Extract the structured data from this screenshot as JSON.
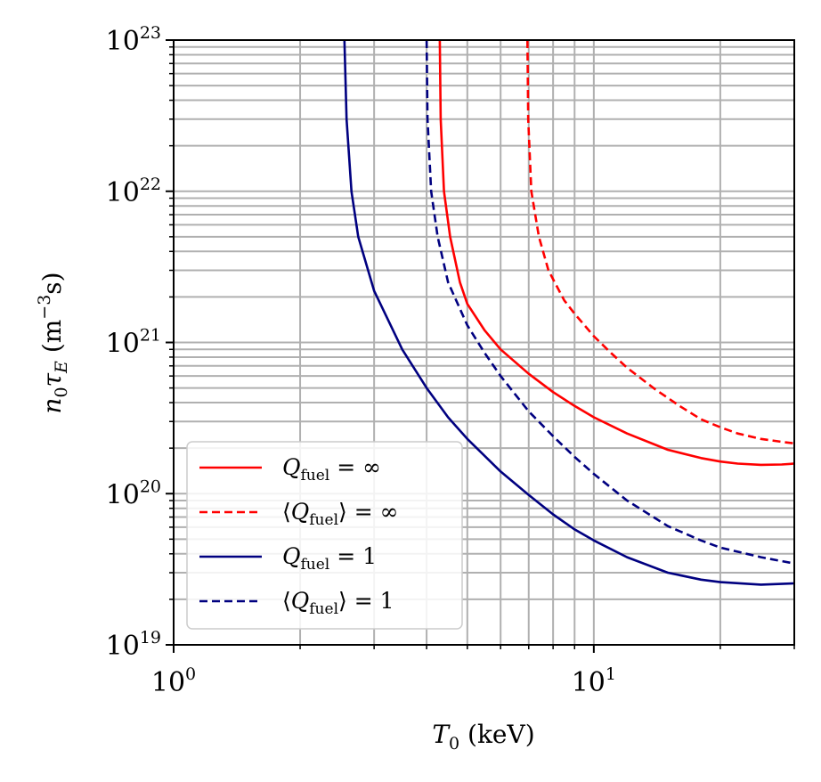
{
  "chart_data": {
    "type": "line",
    "title": "",
    "xlabel": "T_0 (keV)",
    "ylabel": "n_0 τ_E (m^-3 s)",
    "xscale": "log",
    "yscale": "log",
    "xlim": [
      1,
      30
    ],
    "ylim": [
      1e+19,
      1e+23
    ],
    "grid": true,
    "x_ticks": [
      {
        "value": 1,
        "base": "10",
        "exp": "0"
      },
      {
        "value": 10,
        "base": "10",
        "exp": "1"
      }
    ],
    "y_ticks": [
      {
        "value": 1e+19,
        "base": "10",
        "exp": "19"
      },
      {
        "value": 1e+20,
        "base": "10",
        "exp": "20"
      },
      {
        "value": 1e+21,
        "base": "10",
        "exp": "21"
      },
      {
        "value": 1e+22,
        "base": "10",
        "exp": "22"
      },
      {
        "value": 1e+23,
        "base": "10",
        "exp": "23"
      }
    ],
    "legend_position": "lower-left",
    "series": [
      {
        "name": "Q_fuel = ∞",
        "label_parts": {
          "prefix": "",
          "var": "Q",
          "sub": "fuel",
          "suffix": "",
          "rhs": " = ∞"
        },
        "color": "#ff0000",
        "dash": "solid",
        "points": [
          [
            4.3,
            1e+23
          ],
          [
            4.32,
            3e+22
          ],
          [
            4.4,
            1e+22
          ],
          [
            4.55,
            5e+21
          ],
          [
            4.8,
            2.5e+21
          ],
          [
            5,
            1.8e+21
          ],
          [
            5.5,
            1.2e+21
          ],
          [
            6,
            9e+20
          ],
          [
            7,
            6.2e+20
          ],
          [
            8,
            4.7e+20
          ],
          [
            9,
            3.8e+20
          ],
          [
            10,
            3.2e+20
          ],
          [
            12,
            2.5e+20
          ],
          [
            15,
            1.95e+20
          ],
          [
            18,
            1.72e+20
          ],
          [
            20,
            1.63e+20
          ],
          [
            22,
            1.58e+20
          ],
          [
            25,
            1.55e+20
          ],
          [
            28,
            1.56e+20
          ],
          [
            30,
            1.58e+20
          ]
        ]
      },
      {
        "name": "⟨Q_fuel⟩ = ∞",
        "label_parts": {
          "prefix": "⟨",
          "var": "Q",
          "sub": "fuel",
          "suffix": "⟩",
          "rhs": " = ∞"
        },
        "color": "#ff0000",
        "dash": "dashed",
        "points": [
          [
            6.95,
            1e+23
          ],
          [
            6.98,
            3e+22
          ],
          [
            7.1,
            1e+22
          ],
          [
            7.4,
            5e+21
          ],
          [
            7.8,
            3e+21
          ],
          [
            8.5,
            1.9e+21
          ],
          [
            9,
            1.55e+21
          ],
          [
            10,
            1.1e+21
          ],
          [
            11,
            8.5e+20
          ],
          [
            12,
            6.8e+20
          ],
          [
            14,
            4.9e+20
          ],
          [
            16,
            3.8e+20
          ],
          [
            18,
            3.1e+20
          ],
          [
            20,
            2.75e+20
          ],
          [
            22,
            2.5e+20
          ],
          [
            25,
            2.3e+20
          ],
          [
            28,
            2.2e+20
          ],
          [
            30,
            2.15e+20
          ]
        ]
      },
      {
        "name": "Q_fuel = 1",
        "label_parts": {
          "prefix": "",
          "var": "Q",
          "sub": "fuel",
          "suffix": "",
          "rhs": " = 1"
        },
        "color": "#000080",
        "dash": "solid",
        "points": [
          [
            2.55,
            1e+23
          ],
          [
            2.58,
            3e+22
          ],
          [
            2.65,
            1e+22
          ],
          [
            2.75,
            5e+21
          ],
          [
            3,
            2.2e+21
          ],
          [
            3.5,
            9e+20
          ],
          [
            4,
            5e+20
          ],
          [
            4.5,
            3.2e+20
          ],
          [
            5,
            2.3e+20
          ],
          [
            6,
            1.4e+20
          ],
          [
            7,
            9.8e+19
          ],
          [
            8,
            7.3e+19
          ],
          [
            9,
            5.8e+19
          ],
          [
            10,
            4.9e+19
          ],
          [
            12,
            3.8e+19
          ],
          [
            15,
            3e+19
          ],
          [
            18,
            2.7e+19
          ],
          [
            20,
            2.6e+19
          ],
          [
            25,
            2.5e+19
          ],
          [
            30,
            2.55e+19
          ]
        ]
      },
      {
        "name": "⟨Q_fuel⟩ = 1",
        "label_parts": {
          "prefix": "⟨",
          "var": "Q",
          "sub": "fuel",
          "suffix": "⟩",
          "rhs": " = 1"
        },
        "color": "#000080",
        "dash": "dashed",
        "points": [
          [
            4,
            1e+23
          ],
          [
            4.02,
            3e+22
          ],
          [
            4.1,
            1e+22
          ],
          [
            4.25,
            5e+21
          ],
          [
            4.5,
            2.5e+21
          ],
          [
            5,
            1.3e+21
          ],
          [
            5.5,
            8.5e+20
          ],
          [
            6,
            6e+20
          ],
          [
            7,
            3.5e+20
          ],
          [
            8,
            2.4e+20
          ],
          [
            9,
            1.75e+20
          ],
          [
            10,
            1.35e+20
          ],
          [
            12,
            9e+19
          ],
          [
            15,
            6.1e+19
          ],
          [
            18,
            4.9e+19
          ],
          [
            20,
            4.4e+19
          ],
          [
            25,
            3.8e+19
          ],
          [
            30,
            3.45e+19
          ]
        ]
      }
    ]
  }
}
